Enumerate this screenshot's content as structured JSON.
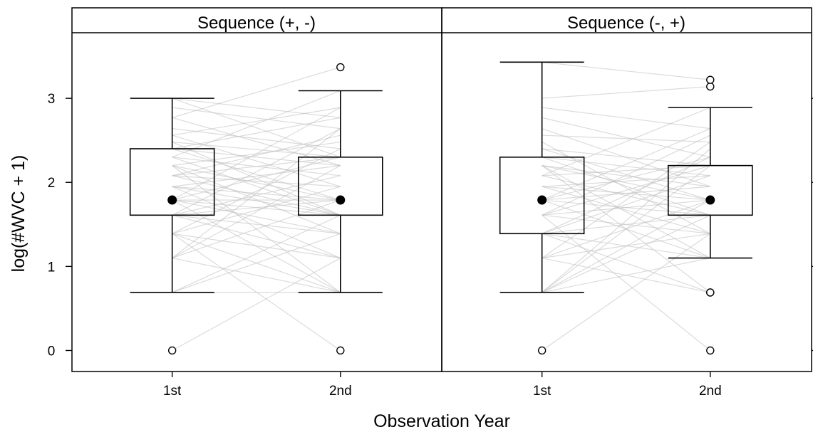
{
  "chart_data": {
    "type": "boxplot",
    "xlabel": "Observation Year",
    "ylabel": "log(#WVC + 1)",
    "ylim": [
      -0.25,
      3.78
    ],
    "yticks": [
      0,
      1,
      2,
      3
    ],
    "categories": [
      "1st",
      "2nd"
    ],
    "grid": false,
    "legend": "none",
    "colors": {
      "frame": "#000000",
      "strip_bg": "#ffffff",
      "paired_lines": "#bdbdbd",
      "median_dot": "#000000"
    },
    "panels": [
      {
        "title": "Sequence (+, -)",
        "boxes": [
          {
            "category": "1st",
            "whisker_low": 0.69,
            "q1": 1.61,
            "median": 1.79,
            "q3": 2.4,
            "whisker_high": 3.0,
            "outliers": [
              0
            ]
          },
          {
            "category": "2nd",
            "whisker_low": 0.69,
            "q1": 1.61,
            "median": 1.79,
            "q3": 2.3,
            "whisker_high": 3.09,
            "outliers": [
              0,
              3.37
            ]
          }
        ],
        "paired_lines": [
          [
            0,
            1.1
          ],
          [
            0.69,
            0.69
          ],
          [
            0.69,
            1.39
          ],
          [
            0.69,
            1.61
          ],
          [
            1.1,
            0.69
          ],
          [
            1.1,
            1.79
          ],
          [
            1.1,
            2.2
          ],
          [
            1.39,
            0.69
          ],
          [
            1.39,
            1.1
          ],
          [
            1.39,
            1.95
          ],
          [
            1.39,
            2.4
          ],
          [
            1.61,
            1.39
          ],
          [
            1.61,
            1.79
          ],
          [
            1.61,
            2.08
          ],
          [
            1.61,
            2.64
          ],
          [
            1.61,
            1.1
          ],
          [
            1.79,
            1.61
          ],
          [
            1.79,
            1.79
          ],
          [
            1.79,
            2.3
          ],
          [
            1.79,
            1.39
          ],
          [
            1.79,
            2.89
          ],
          [
            1.79,
            0.69
          ],
          [
            1.95,
            1.61
          ],
          [
            1.95,
            2.2
          ],
          [
            1.95,
            1.79
          ],
          [
            1.95,
            1.1
          ],
          [
            2.08,
            2.3
          ],
          [
            2.08,
            1.61
          ],
          [
            2.08,
            2.56
          ],
          [
            2.08,
            1.95
          ],
          [
            2.2,
            1.79
          ],
          [
            2.2,
            2.48
          ],
          [
            2.2,
            1.39
          ],
          [
            2.3,
            2.08
          ],
          [
            2.3,
            3.09
          ],
          [
            2.3,
            1.61
          ],
          [
            2.4,
            2.2
          ],
          [
            2.4,
            1.79
          ],
          [
            2.4,
            2.77
          ],
          [
            2.48,
            2.3
          ],
          [
            2.56,
            1.95
          ],
          [
            2.56,
            2.89
          ],
          [
            2.64,
            2.4
          ],
          [
            2.77,
            2.2
          ],
          [
            2.77,
            3.37
          ],
          [
            2.89,
            2.64
          ],
          [
            3.0,
            2.3
          ],
          [
            3.0,
            2.77
          ],
          [
            1.39,
            0
          ],
          [
            2.2,
            0.69
          ],
          [
            1.1,
            2.64
          ],
          [
            2.48,
            1.61
          ]
        ]
      },
      {
        "title": "Sequence (-, +)",
        "boxes": [
          {
            "category": "1st",
            "whisker_low": 0.69,
            "q1": 1.39,
            "median": 1.79,
            "q3": 2.3,
            "whisker_high": 3.43,
            "outliers": [
              0
            ]
          },
          {
            "category": "2nd",
            "whisker_low": 1.1,
            "q1": 1.61,
            "median": 1.79,
            "q3": 2.2,
            "whisker_high": 2.89,
            "outliers": [
              0,
              0.69,
              0.69,
              3.14,
              3.22
            ]
          }
        ],
        "paired_lines": [
          [
            0,
            1.39
          ],
          [
            0.69,
            1.1
          ],
          [
            0.69,
            1.61
          ],
          [
            0.69,
            2.2
          ],
          [
            0.69,
            1.79
          ],
          [
            1.1,
            0.69
          ],
          [
            1.1,
            1.79
          ],
          [
            1.1,
            2.48
          ],
          [
            1.1,
            1.39
          ],
          [
            1.39,
            1.61
          ],
          [
            1.39,
            2.08
          ],
          [
            1.39,
            1.1
          ],
          [
            1.39,
            2.3
          ],
          [
            1.39,
            0.69
          ],
          [
            1.61,
            1.79
          ],
          [
            1.61,
            1.39
          ],
          [
            1.61,
            2.2
          ],
          [
            1.61,
            0
          ],
          [
            1.79,
            1.61
          ],
          [
            1.79,
            1.95
          ],
          [
            1.79,
            2.3
          ],
          [
            1.79,
            1.1
          ],
          [
            1.79,
            2.64
          ],
          [
            1.95,
            1.79
          ],
          [
            1.95,
            2.08
          ],
          [
            1.95,
            1.39
          ],
          [
            2.08,
            1.61
          ],
          [
            2.08,
            2.2
          ],
          [
            2.08,
            2.89
          ],
          [
            2.2,
            1.79
          ],
          [
            2.2,
            1.95
          ],
          [
            2.2,
            0.69
          ],
          [
            2.3,
            2.08
          ],
          [
            2.3,
            1.61
          ],
          [
            2.4,
            2.2
          ],
          [
            2.4,
            1.79
          ],
          [
            2.56,
            2.48
          ],
          [
            2.64,
            1.95
          ],
          [
            2.77,
            2.3
          ],
          [
            2.89,
            2.64
          ],
          [
            3.0,
            3.14
          ],
          [
            3.43,
            3.22
          ],
          [
            1.61,
            2.56
          ],
          [
            2.48,
            1.39
          ],
          [
            0.69,
            2.4
          ],
          [
            2.2,
            1.1
          ]
        ]
      }
    ]
  }
}
